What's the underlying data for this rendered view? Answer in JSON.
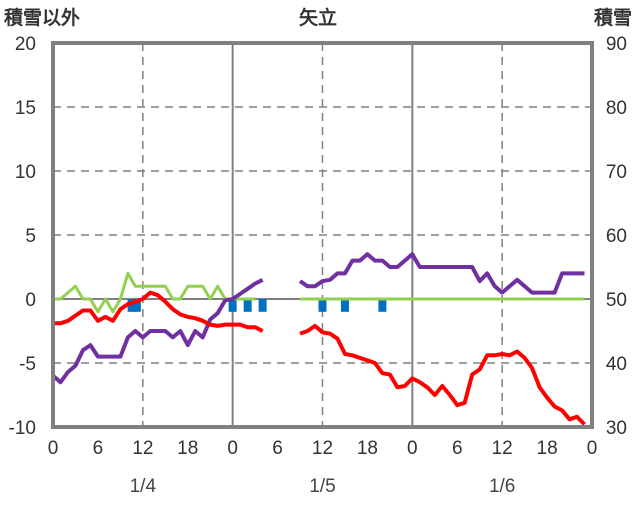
{
  "chart_data": {
    "type": "line",
    "title": "矢立",
    "left_axis_label": "積雪以外",
    "right_axis_label": "積雪",
    "ylim": [
      -10,
      20
    ],
    "y_ticks": [
      "20",
      "15",
      "10",
      "5",
      "0",
      "-5",
      "-10"
    ],
    "y2lim": [
      30,
      90
    ],
    "y2_ticks": [
      "90",
      "80",
      "70",
      "60",
      "50",
      "40",
      "30"
    ],
    "xlim_hours": [
      0,
      72
    ],
    "x_ticks": [
      "0",
      "6",
      "12",
      "18",
      "0",
      "6",
      "12",
      "18",
      "0",
      "6",
      "12",
      "18",
      "0"
    ],
    "date_labels": [
      {
        "hour": 12,
        "label": "1/4"
      },
      {
        "hour": 36,
        "label": "1/5"
      },
      {
        "hour": 60,
        "label": "1/6"
      }
    ],
    "grid": "dashed at 12h and y steps of 5",
    "series": [
      {
        "name": "red",
        "color": "#ff0000",
        "segments": [
          {
            "start_hour": 0,
            "values": [
              -1.9,
              -1.9,
              -1.7,
              -1.3,
              -0.9,
              -0.9,
              -1.7,
              -1.4,
              -1.7,
              -0.8,
              -0.4,
              -0.2,
              0,
              0.5,
              0.3,
              -0.2,
              -0.8,
              -1.2,
              -1.4,
              -1.5,
              -1.7,
              -2.0,
              -2.1,
              -2.0,
              -2.0,
              -2.0,
              -2.2,
              -2.2,
              -2.5
            ]
          },
          {
            "start_hour": 33,
            "values": [
              -2.7,
              -2.5,
              -2.1,
              -2.6,
              -2.7,
              -3.1,
              -4.3,
              -4.4,
              -4.6,
              -4.8,
              -5.0,
              -5.8,
              -5.9,
              -6.9,
              -6.8,
              -6.2,
              -6.5,
              -6.9,
              -7.5,
              -6.8,
              -7.5,
              -8.3,
              -8.1,
              -5.9,
              -5.5,
              -4.4,
              -4.4,
              -4.3,
              -4.4,
              -4.1,
              -4.6,
              -5.4,
              -6.9,
              -7.7,
              -8.4,
              -8.7,
              -9.4,
              -9.2,
              -9.8
            ]
          }
        ]
      },
      {
        "name": "purple",
        "color": "#7030a0",
        "segments": [
          {
            "start_hour": 0,
            "values": [
              -6.0,
              -6.5,
              -5.7,
              -5.2,
              -4.0,
              -3.6,
              -4.5,
              -4.5,
              -4.5,
              -4.5,
              -3.0,
              -2.5,
              -3.0,
              -2.5,
              -2.5,
              -2.5,
              -3.0,
              -2.5,
              -3.6,
              -2.5,
              -3.0,
              -1.6,
              -1.1,
              -0.1,
              0,
              0.4,
              0.8,
              1.2,
              1.5
            ]
          },
          {
            "start_hour": 33,
            "values": [
              1.4,
              1.0,
              1.0,
              1.4,
              1.5,
              2.0,
              2.0,
              3.0,
              3.0,
              3.5,
              3.0,
              3.0,
              2.5,
              2.5,
              3.0,
              3.5,
              2.5,
              2.5,
              2.5,
              2.5,
              2.5,
              2.5,
              2.5,
              2.5,
              1.4,
              2.0,
              1.0,
              0.5,
              1.0,
              1.5,
              1.0,
              0.5,
              0.5,
              0.5,
              0.5,
              2.0,
              2.0,
              2.0,
              2.0
            ]
          }
        ]
      },
      {
        "name": "green",
        "color": "#92d050",
        "segments": [
          {
            "start_hour": 0,
            "values": [
              0,
              0,
              0.5,
              1,
              0,
              0,
              -1,
              0,
              -1,
              0,
              2,
              1,
              1,
              1,
              1,
              1,
              0,
              0,
              1,
              1,
              1,
              0,
              1,
              0,
              0,
              0,
              0,
              0
            ]
          },
          {
            "start_hour": 33,
            "values": [
              0,
              0,
              0,
              0,
              0,
              0,
              0,
              0,
              0,
              0,
              0,
              0,
              0,
              0,
              0,
              0,
              0,
              0,
              0,
              0,
              0,
              0,
              0,
              0,
              0,
              0,
              0,
              0,
              0,
              0,
              0,
              0,
              0,
              0,
              0,
              0,
              0,
              0,
              0
            ]
          }
        ]
      }
    ],
    "bars": {
      "name": "blue",
      "color": "#0070c0",
      "hours": [
        10.5,
        11.2,
        24,
        26,
        28,
        36,
        39,
        44
      ],
      "value": -1
    }
  }
}
